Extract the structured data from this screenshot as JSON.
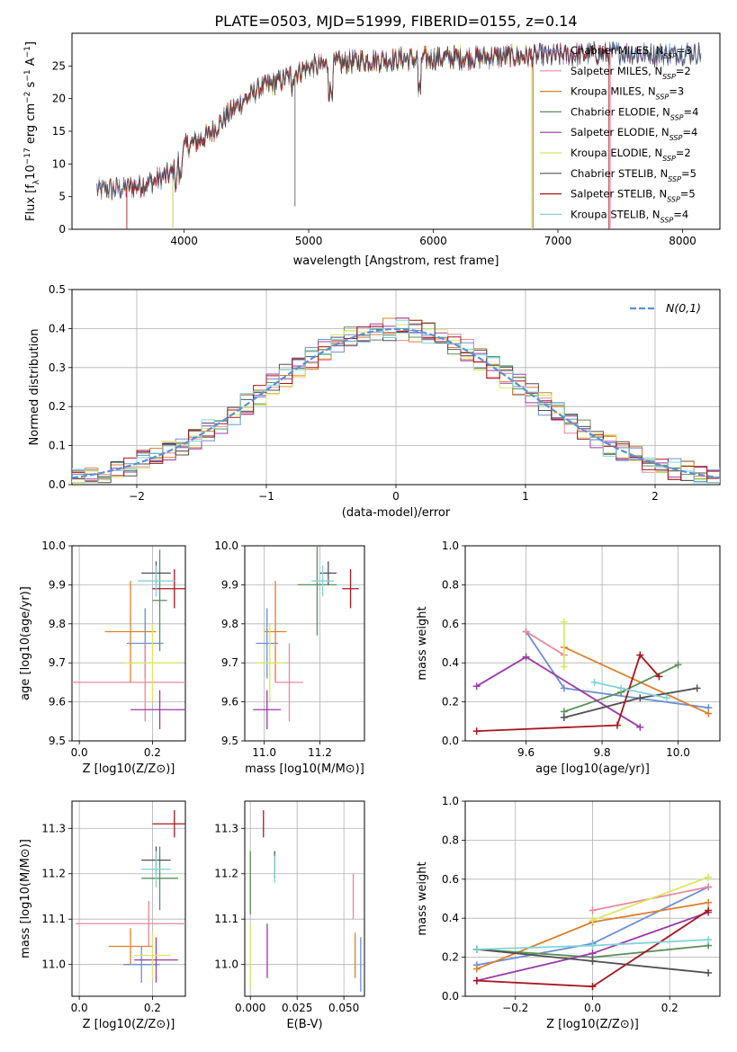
{
  "figure": {
    "title": "PLATE=0503, MJD=51999, FIBERID=0155, z=0.14"
  },
  "colors": {
    "chabrier_miles": "#6a8ed4",
    "salpeter_miles": "#e8889b",
    "kroupa_miles": "#dd7f2b",
    "chabrier_elodie": "#5a8f5a",
    "salpeter_elodie": "#9b3aa8",
    "kroupa_elodie": "#d8e860",
    "chabrier_stelib": "#505050",
    "salpeter_stelib": "#a8161c",
    "kroupa_stelib": "#7fd4d8",
    "gauss": "#5b8fd6"
  },
  "legend_entries": [
    {
      "key": "chabrier_miles",
      "prefix": "Chabrier MILES, N",
      "sub": "SSP",
      "suffix": "=3"
    },
    {
      "key": "salpeter_miles",
      "prefix": "Salpeter MILES, N",
      "sub": "SSP",
      "suffix": "=2"
    },
    {
      "key": "kroupa_miles",
      "prefix": "Kroupa MILES, N",
      "sub": "SSP",
      "suffix": "=3"
    },
    {
      "key": "chabrier_elodie",
      "prefix": "Chabrier ELODIE, N",
      "sub": "SSP",
      "suffix": "=4"
    },
    {
      "key": "salpeter_elodie",
      "prefix": "Salpeter ELODIE, N",
      "sub": "SSP",
      "suffix": "=4"
    },
    {
      "key": "kroupa_elodie",
      "prefix": "Kroupa ELODIE, N",
      "sub": "SSP",
      "suffix": "=2"
    },
    {
      "key": "chabrier_stelib",
      "prefix": "Chabrier STELIB, N",
      "sub": "SSP",
      "suffix": "=5"
    },
    {
      "key": "salpeter_stelib",
      "prefix": "Salpeter STELIB, N",
      "sub": "SSP",
      "suffix": "=5"
    },
    {
      "key": "kroupa_stelib",
      "prefix": "Kroupa STELIB, N",
      "sub": "SSP",
      "suffix": "=4"
    }
  ],
  "chart_data": [
    {
      "id": "spectrum",
      "type": "line",
      "title": "PLATE=0503, MJD=51999, FIBERID=0155, z=0.14",
      "xlabel": "wavelength [Angstrom, rest frame]",
      "ylabel": "Flux [f_λ 10^-17 erg cm^-2 s^-1 A^-1]",
      "xlim": [
        3100,
        8300
      ],
      "ylim": [
        0,
        30
      ],
      "xticks": [
        4000,
        5000,
        6000,
        7000,
        8000
      ],
      "yticks": [
        0,
        5,
        10,
        15,
        20,
        25
      ],
      "continuum_x": [
        3300,
        3500,
        3700,
        3900,
        4000,
        4200,
        4400,
        4600,
        4800,
        5000,
        5200,
        5400,
        5700,
        6000,
        6300,
        6600,
        6900,
        7200,
        7500,
        7800,
        8000,
        8150
      ],
      "continuum_y": [
        6,
        6.2,
        7,
        8.5,
        12.5,
        14.5,
        18.5,
        21.5,
        23,
        24.8,
        25.2,
        25.8,
        26,
        26.2,
        26.3,
        26.5,
        26.5,
        26.8,
        27,
        26.8,
        27,
        27
      ],
      "grid": false,
      "legend": "top-right"
    },
    {
      "id": "residual_hist",
      "type": "step",
      "xlabel": "(data-model)/error",
      "ylabel": "Normed distribution",
      "xlim": [
        -2.5,
        2.5
      ],
      "ylim": [
        0,
        0.5
      ],
      "xticks": [
        -2,
        -1,
        0,
        1,
        2
      ],
      "yticks": [
        0.0,
        0.1,
        0.2,
        0.3,
        0.4,
        0.5
      ],
      "bin_width": 0.1,
      "reference_series": {
        "name": "N(0,1)",
        "kind": "gaussian",
        "mean": 0,
        "sigma": 1
      },
      "grid": true,
      "legend": "top-right"
    },
    {
      "id": "age_vs_Z",
      "type": "scatter",
      "xlabel": "Z [log10(Z/Z⊙)]",
      "ylabel": "age  [log10(age/yr)]",
      "xlim": [
        -0.02,
        0.29
      ],
      "ylim": [
        9.5,
        10.0
      ],
      "xticks": [
        0.0,
        0.2
      ],
      "xtick_labels": [
        "0.0",
        "0.2"
      ],
      "yticks": [
        9.5,
        9.6,
        9.7,
        9.8,
        9.9,
        10.0
      ],
      "ytick_labels": [
        "9.5",
        "9.6",
        "9.7",
        "9.8",
        "9.9",
        "10.0"
      ],
      "points": [
        {
          "s": "chabrier_miles",
          "x": 0.18,
          "y": 9.75,
          "xerr": 0.05,
          "yerr": 0.09
        },
        {
          "s": "salpeter_miles",
          "x": 0.18,
          "y": 9.65,
          "xerr": 0.22,
          "yerr": 0.1
        },
        {
          "s": "kroupa_miles",
          "x": 0.14,
          "y": 9.78,
          "xerr": 0.07,
          "yerr": 0.13
        },
        {
          "s": "chabrier_elodie",
          "x": 0.22,
          "y": 9.86,
          "xerr": 0.02,
          "yerr": 0.13
        },
        {
          "s": "salpeter_elodie",
          "x": 0.22,
          "y": 9.58,
          "xerr": 0.08,
          "yerr": 0.05
        },
        {
          "s": "kroupa_elodie",
          "x": 0.2,
          "y": 9.7,
          "xerr": 0.08,
          "yerr": 0.1
        },
        {
          "s": "chabrier_stelib",
          "x": 0.21,
          "y": 9.93,
          "xerr": 0.04,
          "yerr": 0.03
        },
        {
          "s": "salpeter_stelib",
          "x": 0.26,
          "y": 9.89,
          "xerr": 0.06,
          "yerr": 0.05
        },
        {
          "s": "kroupa_stelib",
          "x": 0.21,
          "y": 9.91,
          "xerr": 0.05,
          "yerr": 0.04
        }
      ],
      "grid": true
    },
    {
      "id": "age_vs_mass",
      "type": "scatter",
      "xlabel": "mass [log10(M/M⊙)]",
      "ylabel": "",
      "xlim": [
        10.93,
        11.36
      ],
      "ylim": [
        9.5,
        10.0
      ],
      "xticks": [
        11.0,
        11.2
      ],
      "xtick_labels": [
        "11.0",
        "11.2"
      ],
      "yticks": [
        9.5,
        9.6,
        9.7,
        9.8,
        9.9,
        10.0
      ],
      "ytick_labels": [
        "9.5",
        "9.6",
        "9.7",
        "9.8",
        "9.9",
        "10.0"
      ],
      "points": [
        {
          "s": "chabrier_miles",
          "x": 11.01,
          "y": 9.75,
          "xerr": 0.04,
          "yerr": 0.09
        },
        {
          "s": "salpeter_miles",
          "x": 11.09,
          "y": 9.65,
          "xerr": 0.05,
          "yerr": 0.1
        },
        {
          "s": "kroupa_miles",
          "x": 11.04,
          "y": 9.78,
          "xerr": 0.04,
          "yerr": 0.13
        },
        {
          "s": "chabrier_elodie",
          "x": 11.19,
          "y": 9.9,
          "xerr": 0.07,
          "yerr": 0.13
        },
        {
          "s": "salpeter_elodie",
          "x": 11.01,
          "y": 9.58,
          "xerr": 0.05,
          "yerr": 0.05
        },
        {
          "s": "kroupa_elodie",
          "x": 11.02,
          "y": 9.7,
          "xerr": 0.05,
          "yerr": 0.1
        },
        {
          "s": "chabrier_stelib",
          "x": 11.23,
          "y": 9.93,
          "xerr": 0.03,
          "yerr": 0.03
        },
        {
          "s": "salpeter_stelib",
          "x": 11.31,
          "y": 9.89,
          "xerr": 0.03,
          "yerr": 0.05
        },
        {
          "s": "kroupa_stelib",
          "x": 11.21,
          "y": 9.91,
          "xerr": 0.04,
          "yerr": 0.04
        }
      ],
      "grid": true
    },
    {
      "id": "weight_vs_age",
      "type": "line",
      "xlabel": "age  [log10(age/yr)]",
      "ylabel": "mass weight",
      "xlim": [
        9.44,
        10.11
      ],
      "ylim": [
        0,
        1
      ],
      "xticks": [
        9.6,
        9.8,
        10.0
      ],
      "xtick_labels": [
        "9.6",
        "9.8",
        "10.0"
      ],
      "yticks": [
        0.0,
        0.2,
        0.4,
        0.6,
        0.8,
        1.0
      ],
      "series": [
        {
          "s": "chabrier_miles",
          "x": [
            9.6,
            9.7,
            10.08
          ],
          "y": [
            0.56,
            0.27,
            0.17
          ]
        },
        {
          "s": "salpeter_miles",
          "x": [
            9.6,
            9.7
          ],
          "y": [
            0.56,
            0.44
          ]
        },
        {
          "s": "kroupa_miles",
          "x": [
            9.7,
            10.08
          ],
          "y": [
            0.48,
            0.14
          ]
        },
        {
          "s": "chabrier_elodie",
          "x": [
            9.7,
            9.85,
            10.0
          ],
          "y": [
            0.15,
            0.25,
            0.39
          ]
        },
        {
          "s": "salpeter_elodie",
          "x": [
            9.47,
            9.6,
            9.9
          ],
          "y": [
            0.28,
            0.43,
            0.07
          ]
        },
        {
          "s": "kroupa_elodie",
          "x": [
            9.7,
            9.7
          ],
          "y": [
            0.38,
            0.61
          ]
        },
        {
          "s": "chabrier_stelib",
          "x": [
            9.7,
            9.9,
            10.05
          ],
          "y": [
            0.12,
            0.22,
            0.27
          ]
        },
        {
          "s": "salpeter_stelib",
          "x": [
            9.47,
            9.84,
            9.9,
            9.95
          ],
          "y": [
            0.05,
            0.08,
            0.44,
            0.33
          ]
        },
        {
          "s": "kroupa_stelib",
          "x": [
            9.78,
            9.85,
            9.97
          ],
          "y": [
            0.3,
            0.27,
            0.22
          ]
        }
      ],
      "grid": true
    },
    {
      "id": "mass_vs_Z",
      "type": "scatter",
      "xlabel": "Z [log10(Z/Z⊙)]",
      "ylabel": "mass [log10(M/M⊙)]",
      "xlim": [
        -0.02,
        0.29
      ],
      "ylim": [
        10.93,
        11.36
      ],
      "xticks": [
        0.0,
        0.2
      ],
      "xtick_labels": [
        "0.0",
        "0.2"
      ],
      "yticks": [
        11.0,
        11.1,
        11.2,
        11.3
      ],
      "ytick_labels": [
        "11.0",
        "11.1",
        "11.2",
        "11.3"
      ],
      "points": [
        {
          "s": "chabrier_miles",
          "x": 0.17,
          "y": 11.0,
          "xerr": 0.05,
          "yerr": 0.04
        },
        {
          "s": "salpeter_miles",
          "x": 0.19,
          "y": 11.09,
          "xerr": 0.2,
          "yerr": 0.05
        },
        {
          "s": "kroupa_miles",
          "x": 0.14,
          "y": 11.04,
          "xerr": 0.06,
          "yerr": 0.04
        },
        {
          "s": "chabrier_elodie",
          "x": 0.22,
          "y": 11.19,
          "xerr": 0.05,
          "yerr": 0.07
        },
        {
          "s": "salpeter_elodie",
          "x": 0.21,
          "y": 11.01,
          "xerr": 0.06,
          "yerr": 0.05
        },
        {
          "s": "kroupa_elodie",
          "x": 0.2,
          "y": 11.02,
          "xerr": 0.05,
          "yerr": 0.05
        },
        {
          "s": "chabrier_stelib",
          "x": 0.21,
          "y": 11.23,
          "xerr": 0.04,
          "yerr": 0.03
        },
        {
          "s": "salpeter_stelib",
          "x": 0.26,
          "y": 11.31,
          "xerr": 0.06,
          "yerr": 0.03
        },
        {
          "s": "kroupa_stelib",
          "x": 0.21,
          "y": 11.21,
          "xerr": 0.04,
          "yerr": 0.04
        }
      ],
      "grid": true
    },
    {
      "id": "mass_vs_ebv",
      "type": "scatter",
      "xlabel": "E(B-V)",
      "ylabel": "",
      "xlim": [
        -0.003,
        0.061
      ],
      "ylim": [
        10.93,
        11.36
      ],
      "xticks": [
        0.0,
        0.025,
        0.05
      ],
      "xtick_labels": [
        "0.000",
        "0.025",
        "0.050"
      ],
      "yticks": [
        11.0,
        11.1,
        11.2,
        11.3
      ],
      "ytick_labels": [
        "11.0",
        "11.1",
        "11.2",
        "11.3"
      ],
      "points": [
        {
          "s": "chabrier_miles",
          "x": 0.059,
          "y": 11.0,
          "xerr": 0,
          "yerr": 0.06
        },
        {
          "s": "salpeter_miles",
          "x": 0.055,
          "y": 11.15,
          "xerr": 0,
          "yerr": 0.05
        },
        {
          "s": "kroupa_miles",
          "x": 0.056,
          "y": 11.02,
          "xerr": 0,
          "yerr": 0.05
        },
        {
          "s": "chabrier_elodie",
          "x": 0.0,
          "y": 11.18,
          "xerr": 0,
          "yerr": 0.07
        },
        {
          "s": "salpeter_elodie",
          "x": 0.009,
          "y": 11.03,
          "xerr": 0,
          "yerr": 0.06
        },
        {
          "s": "kroupa_elodie",
          "x": 0.0,
          "y": 11.02,
          "xerr": 0,
          "yerr": 0.07
        },
        {
          "s": "chabrier_stelib",
          "x": 0.013,
          "y": 11.22,
          "xerr": 0,
          "yerr": 0.03
        },
        {
          "s": "salpeter_stelib",
          "x": 0.007,
          "y": 11.31,
          "xerr": 0,
          "yerr": 0.03
        },
        {
          "s": "kroupa_stelib",
          "x": 0.013,
          "y": 11.21,
          "xerr": 0,
          "yerr": 0.03
        }
      ],
      "grid": true
    },
    {
      "id": "weight_vs_Z",
      "type": "line",
      "xlabel": "Z [log10(Z/Z⊙)]",
      "ylabel": "mass weight",
      "xlim": [
        -0.33,
        0.33
      ],
      "ylim": [
        0,
        1
      ],
      "xticks": [
        -0.2,
        0.0,
        0.2
      ],
      "xtick_labels": [
        "−0.2",
        "0.0",
        "0.2"
      ],
      "yticks": [
        0.0,
        0.2,
        0.4,
        0.6,
        0.8,
        1.0
      ],
      "series": [
        {
          "s": "chabrier_miles",
          "x": [
            -0.3,
            0.0,
            0.3
          ],
          "y": [
            0.16,
            0.27,
            0.56
          ]
        },
        {
          "s": "salpeter_miles",
          "x": [
            0.0,
            0.3
          ],
          "y": [
            0.44,
            0.56
          ]
        },
        {
          "s": "kroupa_miles",
          "x": [
            -0.3,
            0.0,
            0.3
          ],
          "y": [
            0.14,
            0.38,
            0.48
          ]
        },
        {
          "s": "chabrier_elodie",
          "x": [
            -0.3,
            0.0,
            0.3
          ],
          "y": [
            0.24,
            0.2,
            0.26
          ]
        },
        {
          "s": "salpeter_elodie",
          "x": [
            -0.3,
            0.0,
            0.3
          ],
          "y": [
            0.08,
            0.22,
            0.43
          ]
        },
        {
          "s": "kroupa_elodie",
          "x": [
            0.0,
            0.3
          ],
          "y": [
            0.39,
            0.61
          ]
        },
        {
          "s": "chabrier_stelib",
          "x": [
            -0.3,
            0.0,
            0.3
          ],
          "y": [
            0.24,
            0.18,
            0.12
          ]
        },
        {
          "s": "salpeter_stelib",
          "x": [
            -0.3,
            0.0,
            0.3
          ],
          "y": [
            0.08,
            0.05,
            0.44
          ]
        },
        {
          "s": "kroupa_stelib",
          "x": [
            -0.3,
            0.0,
            0.3
          ],
          "y": [
            0.24,
            0.26,
            0.29
          ]
        }
      ],
      "grid": true
    }
  ]
}
